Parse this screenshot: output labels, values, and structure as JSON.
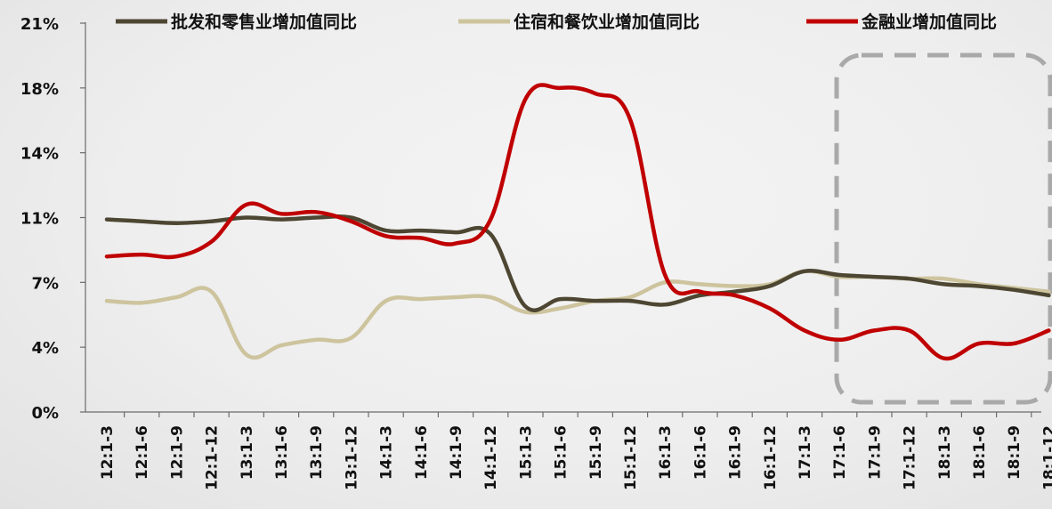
{
  "chart_data": {
    "type": "line",
    "title": "",
    "xlabel": "",
    "ylabel": "",
    "y_ticks": [
      "0%",
      "4%",
      "7%",
      "11%",
      "14%",
      "18%",
      "21%"
    ],
    "y_tick_values": [
      0,
      3.5,
      7,
      10.5,
      14,
      17.5,
      21
    ],
    "ylim": [
      0,
      21
    ],
    "grid": false,
    "legend_position": "top",
    "categories": [
      "12:1-3",
      "12:1-6",
      "12:1-9",
      "12:1-12",
      "13:1-3",
      "13:1-6",
      "13:1-9",
      "13:1-12",
      "14:1-3",
      "14:1-6",
      "14:1-9",
      "14:1-12",
      "15:1-3",
      "15:1-6",
      "15:1-9",
      "15:1-12",
      "16:1-3",
      "16:1-6",
      "16:1-9",
      "16:1-12",
      "17:1-3",
      "17:1-6",
      "17:1-9",
      "17:1-12",
      "18:1-3",
      "18:1-6",
      "18:1-9",
      "18:1-12"
    ],
    "series": [
      {
        "name": "批发和零售业增加值同比",
        "color": "#4d4632",
        "values": [
          10.4,
          10.3,
          10.2,
          10.3,
          10.5,
          10.4,
          10.5,
          10.5,
          9.8,
          9.8,
          9.7,
          9.6,
          5.7,
          6.1,
          6.0,
          6.0,
          5.8,
          6.3,
          6.5,
          6.8,
          7.6,
          7.4,
          7.3,
          7.2,
          6.9,
          6.8,
          6.6,
          6.3
        ]
      },
      {
        "name": "住宿和餐饮业增加值同比",
        "color": "#cdc49e",
        "values": [
          6.0,
          5.9,
          6.2,
          6.5,
          3.1,
          3.6,
          3.9,
          4.0,
          6.0,
          6.1,
          6.2,
          6.2,
          5.4,
          5.6,
          6.0,
          6.2,
          7.0,
          6.9,
          6.8,
          6.9,
          7.6,
          7.3,
          7.3,
          7.2,
          7.2,
          6.9,
          6.7,
          6.5
        ]
      },
      {
        "name": "金融业增加值同比",
        "color": "#c00000",
        "values": [
          8.4,
          8.5,
          8.4,
          9.2,
          11.2,
          10.7,
          10.8,
          10.3,
          9.5,
          9.4,
          9.1,
          10.4,
          16.9,
          17.5,
          17.2,
          15.8,
          7.4,
          6.5,
          6.3,
          5.6,
          4.4,
          3.9,
          4.4,
          4.4,
          2.9,
          3.7,
          3.7,
          4.4
        ]
      }
    ]
  }
}
